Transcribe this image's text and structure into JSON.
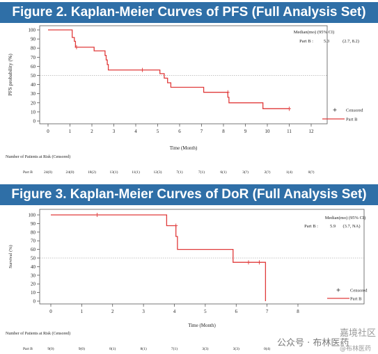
{
  "figures": [
    {
      "title": "Figure 2. Kaplan-Meier Curves of PFS (Full Analysis Set)",
      "legend_header": "Median(mo)    (95% CI)",
      "legend_row": {
        "group": "Part B :",
        "median": "5.3",
        "ci": "(2.7, 8.2)"
      },
      "legend_censored": "Censored",
      "legend_series": "Part B",
      "risk_title": "Number of Patients at Risk (Censored)",
      "risk_group": "Part B",
      "risk_values": [
        "24(0)",
        "24(0)",
        "18(2)",
        "13(1)",
        "11(1)",
        "12(3)",
        "7(1)",
        "7(1)",
        "6(1)",
        "3(?)",
        "2(?)",
        "1(4)",
        "0(?)"
      ]
    },
    {
      "title": "Figure 3. Kaplan-Meier Curves of DoR (Full Analysis Set)",
      "legend_header": "Median(mo)    (95% CI)",
      "legend_row": {
        "group": "Part B :",
        "median": "5.9",
        "ci": "(3.7, NA)"
      },
      "legend_censored": "Censored",
      "legend_series": "Part B",
      "risk_title": "Number of Patients at Risk (Censored)",
      "risk_group": "Part B",
      "risk_values": [
        "9(0)",
        "9(0)",
        "8(1)",
        "8(1)",
        "7(1)",
        "3(3)",
        "3(3)",
        "0(4)"
      ]
    }
  ],
  "chart_data": [
    {
      "type": "line",
      "step": true,
      "title": "Figure 2. Kaplan-Meier Curves of PFS (Full Analysis Set)",
      "xlabel": "Time (Month)",
      "ylabel": "PFS probability (%)",
      "xlim": [
        0,
        12
      ],
      "ylim": [
        0,
        100
      ],
      "xticks": [
        0,
        1,
        2,
        3,
        4,
        5,
        6,
        7,
        8,
        9,
        10,
        11,
        12
      ],
      "yticks": [
        0,
        10,
        20,
        30,
        40,
        50,
        60,
        70,
        80,
        90,
        100
      ],
      "reference_line_y": 50,
      "legend_position": "right",
      "color": "#e03a3a",
      "series": [
        {
          "name": "Part B",
          "steps": [
            [
              0,
              100
            ],
            [
              1.1,
              100
            ],
            [
              1.1,
              91.7
            ],
            [
              1.2,
              91.7
            ],
            [
              1.2,
              87.5
            ],
            [
              1.25,
              87.5
            ],
            [
              1.25,
              81
            ],
            [
              2.1,
              81
            ],
            [
              2.1,
              77
            ],
            [
              2.6,
              77
            ],
            [
              2.6,
              72
            ],
            [
              2.65,
              72
            ],
            [
              2.65,
              67
            ],
            [
              2.7,
              67
            ],
            [
              2.7,
              62
            ],
            [
              2.75,
              62
            ],
            [
              2.75,
              56
            ],
            [
              5.1,
              56
            ],
            [
              5.1,
              52
            ],
            [
              5.3,
              52
            ],
            [
              5.3,
              47
            ],
            [
              5.45,
              47
            ],
            [
              5.45,
              42
            ],
            [
              5.6,
              42
            ],
            [
              5.6,
              37
            ],
            [
              7.1,
              37
            ],
            [
              7.1,
              31.5
            ],
            [
              8.2,
              31.5
            ],
            [
              8.2,
              26
            ],
            [
              8.25,
              26
            ],
            [
              8.25,
              20
            ],
            [
              9.8,
              20
            ],
            [
              9.8,
              13.5
            ],
            [
              11,
              13.5
            ]
          ],
          "censored": [
            [
              1.3,
              81
            ],
            [
              4.3,
              56
            ],
            [
              8.2,
              31.5
            ],
            [
              11,
              13.5
            ]
          ]
        }
      ]
    },
    {
      "type": "line",
      "step": true,
      "title": "Figure 3. Kaplan-Meier Curves of DoR (Full Analysis Set)",
      "xlabel": "Time (Month)",
      "ylabel": "Survival (%)",
      "xlim": [
        0,
        8
      ],
      "ylim": [
        0,
        100
      ],
      "xticks": [
        0,
        1,
        2,
        3,
        4,
        5,
        6,
        7,
        8
      ],
      "yticks": [
        0,
        10,
        20,
        30,
        40,
        50,
        60,
        70,
        80,
        90,
        100
      ],
      "reference_line_y": 50,
      "legend_position": "right",
      "color": "#e03a3a",
      "series": [
        {
          "name": "Part B",
          "steps": [
            [
              0,
              100
            ],
            [
              3.75,
              100
            ],
            [
              3.75,
              87.5
            ],
            [
              4.05,
              87.5
            ],
            [
              4.05,
              75
            ],
            [
              4.1,
              75
            ],
            [
              4.1,
              60
            ],
            [
              5.9,
              60
            ],
            [
              5.9,
              45
            ],
            [
              6.95,
              45
            ],
            [
              6.95,
              0
            ]
          ],
          "censored": [
            [
              1.5,
              100
            ],
            [
              4.05,
              87.5
            ],
            [
              6.4,
              45
            ],
            [
              6.75,
              45
            ]
          ]
        }
      ]
    }
  ],
  "watermark": {
    "line1": "嘉境社区",
    "line2": "公众号 · 布林医药",
    "line3": "@布林医药"
  }
}
